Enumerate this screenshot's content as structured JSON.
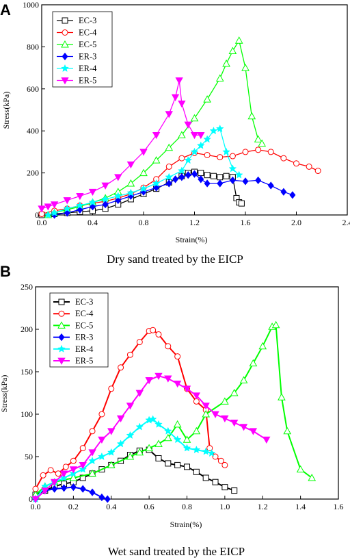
{
  "chart_data": [
    {
      "type": "line",
      "panel_label": "A",
      "caption": "Dry sand treated by the EICP",
      "xlabel": "Strain(%)",
      "ylabel": "Stress(kPa)",
      "xlim": [
        0,
        2.4
      ],
      "ylim": [
        0,
        1000
      ],
      "xticks": [
        "0.0",
        "0.4",
        "0.8",
        "1.2",
        "1.6",
        "2.0",
        "2.4"
      ],
      "yticks": [
        "0",
        "200",
        "400",
        "600",
        "800",
        "1000"
      ],
      "legend_position": "top-left",
      "series": [
        {
          "name": "EC-3",
          "color": "#000000",
          "marker": "square-open",
          "x": [
            0.0,
            0.1,
            0.2,
            0.3,
            0.4,
            0.5,
            0.6,
            0.7,
            0.8,
            0.9,
            1.0,
            1.1,
            1.15,
            1.2,
            1.25,
            1.3,
            1.35,
            1.4,
            1.45,
            1.5,
            1.53,
            1.55,
            1.57
          ],
          "y": [
            0,
            5,
            10,
            15,
            20,
            30,
            50,
            75,
            100,
            125,
            155,
            185,
            200,
            205,
            200,
            190,
            185,
            180,
            185,
            180,
            80,
            60,
            55
          ]
        },
        {
          "name": "EC-4",
          "color": "#ff0000",
          "marker": "circle-open",
          "x": [
            0.0,
            0.1,
            0.2,
            0.3,
            0.4,
            0.5,
            0.6,
            0.7,
            0.8,
            0.9,
            1.0,
            1.1,
            1.2,
            1.3,
            1.4,
            1.5,
            1.6,
            1.7,
            1.8,
            1.9,
            2.0,
            2.1,
            2.17
          ],
          "y": [
            5,
            20,
            30,
            45,
            55,
            65,
            80,
            100,
            130,
            170,
            230,
            270,
            295,
            285,
            275,
            280,
            300,
            310,
            300,
            270,
            245,
            230,
            210
          ]
        },
        {
          "name": "EC-5",
          "color": "#00ff00",
          "marker": "triangle-open",
          "x": [
            0.05,
            0.1,
            0.2,
            0.3,
            0.4,
            0.5,
            0.6,
            0.7,
            0.8,
            0.9,
            1.0,
            1.1,
            1.2,
            1.3,
            1.4,
            1.45,
            1.5,
            1.55,
            1.6,
            1.65,
            1.7,
            1.73
          ],
          "y": [
            0,
            10,
            25,
            40,
            60,
            80,
            110,
            150,
            200,
            260,
            320,
            380,
            460,
            550,
            650,
            720,
            780,
            830,
            700,
            470,
            360,
            340
          ]
        },
        {
          "name": "ER-3",
          "color": "#0000ff",
          "marker": "diamond-filled",
          "x": [
            0.1,
            0.2,
            0.3,
            0.4,
            0.5,
            0.6,
            0.7,
            0.8,
            0.9,
            1.0,
            1.05,
            1.1,
            1.15,
            1.2,
            1.25,
            1.3,
            1.4,
            1.5,
            1.6,
            1.7,
            1.8,
            1.9,
            1.97
          ],
          "y": [
            0,
            10,
            25,
            40,
            50,
            70,
            90,
            110,
            130,
            150,
            170,
            180,
            190,
            195,
            170,
            150,
            150,
            165,
            160,
            165,
            140,
            110,
            95
          ]
        },
        {
          "name": "ER-4",
          "color": "#00ffff",
          "marker": "star-filled",
          "x": [
            0.05,
            0.1,
            0.2,
            0.3,
            0.4,
            0.5,
            0.6,
            0.7,
            0.8,
            0.9,
            1.0,
            1.1,
            1.15,
            1.2,
            1.25,
            1.3,
            1.35,
            1.4,
            1.45,
            1.5,
            1.55
          ],
          "y": [
            0,
            10,
            30,
            45,
            60,
            75,
            90,
            105,
            125,
            150,
            180,
            210,
            260,
            300,
            330,
            360,
            400,
            410,
            300,
            220,
            190
          ]
        },
        {
          "name": "ER-5",
          "color": "#ff00ff",
          "marker": "triangle-down-filled",
          "x": [
            0.0,
            0.05,
            0.1,
            0.2,
            0.3,
            0.4,
            0.5,
            0.6,
            0.7,
            0.8,
            0.9,
            1.0,
            1.05,
            1.08,
            1.1,
            1.15,
            1.2,
            1.25
          ],
          "y": [
            30,
            40,
            50,
            70,
            90,
            110,
            140,
            180,
            240,
            300,
            380,
            480,
            560,
            640,
            530,
            430,
            380,
            380
          ]
        }
      ]
    },
    {
      "type": "line",
      "panel_label": "B",
      "caption": "Wet sand treated by the EICP",
      "xlabel": "Strain(%)",
      "ylabel": "Stress(kPa)",
      "xlim": [
        0,
        1.6
      ],
      "ylim": [
        0,
        250
      ],
      "xticks": [
        "0.0",
        "0.2",
        "0.4",
        "0.6",
        "0.8",
        "1.0",
        "1.2",
        "1.4",
        "1.6"
      ],
      "yticks": [
        "0",
        "50",
        "100",
        "150",
        "200",
        "250"
      ],
      "legend_position": "top-left",
      "series": [
        {
          "name": "EC-3",
          "color": "#000000",
          "marker": "square-open",
          "x": [
            0.0,
            0.05,
            0.1,
            0.15,
            0.2,
            0.25,
            0.3,
            0.35,
            0.4,
            0.45,
            0.5,
            0.55,
            0.6,
            0.65,
            0.7,
            0.75,
            0.8,
            0.85,
            0.9,
            0.95,
            1.0,
            1.05
          ],
          "y": [
            5,
            10,
            15,
            18,
            20,
            25,
            30,
            35,
            40,
            45,
            52,
            57,
            58,
            48,
            42,
            40,
            38,
            32,
            25,
            20,
            14,
            10
          ]
        },
        {
          "name": "EC-4",
          "color": "#ff0000",
          "marker": "circle-open",
          "x": [
            0.0,
            0.04,
            0.08,
            0.12,
            0.16,
            0.2,
            0.25,
            0.3,
            0.35,
            0.4,
            0.45,
            0.5,
            0.55,
            0.6,
            0.62,
            0.65,
            0.7,
            0.75,
            0.8,
            0.85,
            0.9,
            0.92,
            0.95,
            0.98,
            1.0
          ],
          "y": [
            12,
            28,
            34,
            30,
            38,
            45,
            60,
            80,
            100,
            130,
            155,
            170,
            185,
            198,
            199,
            194,
            180,
            168,
            130,
            115,
            105,
            60,
            50,
            45,
            40
          ]
        },
        {
          "name": "EC-5",
          "color": "#00ff00",
          "marker": "triangle-open",
          "x": [
            0.0,
            0.05,
            0.1,
            0.2,
            0.3,
            0.4,
            0.5,
            0.55,
            0.6,
            0.65,
            0.7,
            0.75,
            0.8,
            0.85,
            0.9,
            1.0,
            1.05,
            1.1,
            1.15,
            1.2,
            1.25,
            1.27,
            1.3,
            1.33,
            1.4,
            1.46
          ],
          "y": [
            5,
            15,
            20,
            25,
            30,
            40,
            50,
            55,
            60,
            65,
            72,
            88,
            70,
            80,
            100,
            115,
            125,
            140,
            160,
            180,
            203,
            205,
            120,
            80,
            35,
            25
          ]
        },
        {
          "name": "ER-3",
          "color": "#0000ff",
          "marker": "diamond-filled",
          "x": [
            0.0,
            0.05,
            0.1,
            0.15,
            0.2,
            0.25,
            0.3,
            0.35,
            0.38
          ],
          "y": [
            0,
            10,
            12,
            13,
            14,
            12,
            8,
            2,
            0
          ]
        },
        {
          "name": "ER-4",
          "color": "#00ffff",
          "marker": "star-filled",
          "x": [
            0.0,
            0.05,
            0.1,
            0.15,
            0.2,
            0.25,
            0.3,
            0.35,
            0.4,
            0.45,
            0.5,
            0.55,
            0.6,
            0.62,
            0.65,
            0.7,
            0.75,
            0.8,
            0.85,
            0.9,
            0.93
          ],
          "y": [
            0,
            15,
            20,
            25,
            30,
            35,
            45,
            50,
            55,
            65,
            75,
            85,
            93,
            94,
            88,
            80,
            70,
            60,
            58,
            56,
            54
          ]
        },
        {
          "name": "ER-5",
          "color": "#ff00ff",
          "marker": "triangle-down-filled",
          "x": [
            0.0,
            0.05,
            0.1,
            0.15,
            0.2,
            0.25,
            0.3,
            0.35,
            0.4,
            0.45,
            0.5,
            0.55,
            0.6,
            0.65,
            0.7,
            0.75,
            0.8,
            0.85,
            0.9,
            0.95,
            1.0,
            1.05,
            1.1,
            1.15,
            1.22
          ],
          "y": [
            0,
            10,
            20,
            30,
            35,
            40,
            55,
            70,
            80,
            95,
            110,
            125,
            140,
            145,
            142,
            136,
            130,
            122,
            110,
            100,
            95,
            90,
            85,
            80,
            70
          ]
        }
      ]
    }
  ]
}
